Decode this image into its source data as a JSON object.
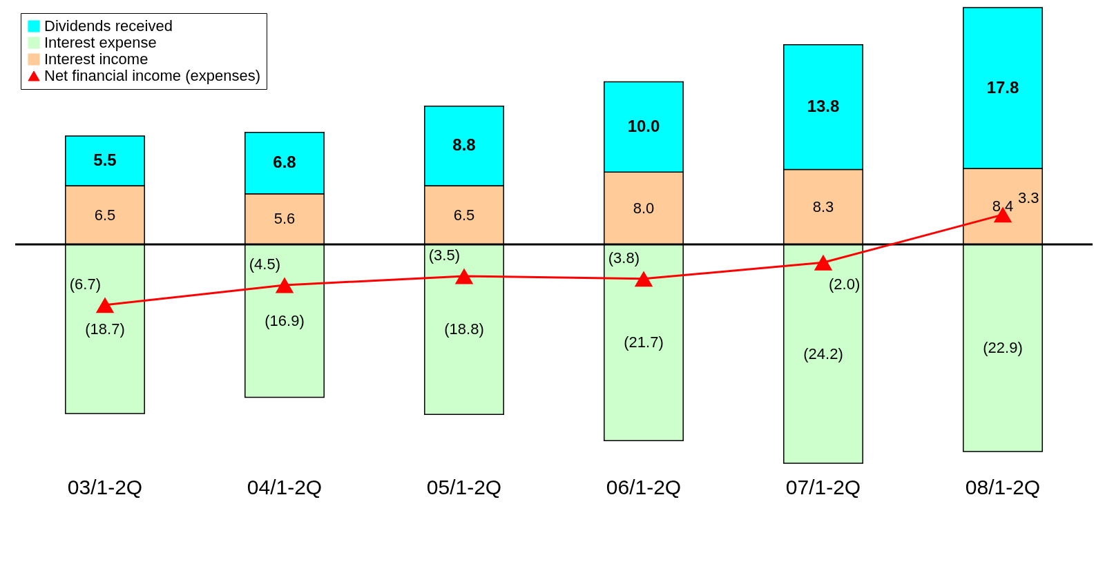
{
  "chart_data": {
    "type": "bar",
    "stacked": true,
    "legend": "top left",
    "marker": "triangle",
    "categories": [
      "03/1-2Q",
      "04/1-2Q",
      "05/1-2Q",
      "06/1-2Q",
      "07/1-2Q",
      "08/1-2Q"
    ],
    "series": [
      {
        "name": "Interest income",
        "color": "#ffcc99",
        "values": [
          6.5,
          5.6,
          6.5,
          8.0,
          8.3,
          8.4
        ],
        "value_labels": [
          "6.5",
          "5.6",
          "6.5",
          "8.0",
          "8.3",
          "8.4"
        ]
      },
      {
        "name": "Interest expense",
        "color": "#ccffcc",
        "values": [
          -18.7,
          -16.9,
          -18.8,
          -21.7,
          -24.2,
          -22.9
        ],
        "value_labels": [
          "(18.7)",
          "(16.9)",
          "(18.8)",
          "(21.7)",
          "(24.2)",
          "(22.9)"
        ]
      },
      {
        "name": "Dividends received",
        "color": "#00ffff",
        "values": [
          5.5,
          6.8,
          8.8,
          10.0,
          13.8,
          17.8
        ],
        "value_labels": [
          "5.5",
          "6.8",
          "8.8",
          "10.0",
          "13.8",
          "17.8"
        ]
      },
      {
        "name": "Net financial income (expenses)",
        "type": "line",
        "color": "#ff0000",
        "values": [
          -6.7,
          -4.5,
          -3.5,
          -3.8,
          -2.0,
          3.3
        ],
        "value_labels": [
          "(6.7)",
          "(4.5)",
          "(3.5)",
          "(3.8)",
          "(2.0)",
          "3.3"
        ]
      }
    ]
  }
}
